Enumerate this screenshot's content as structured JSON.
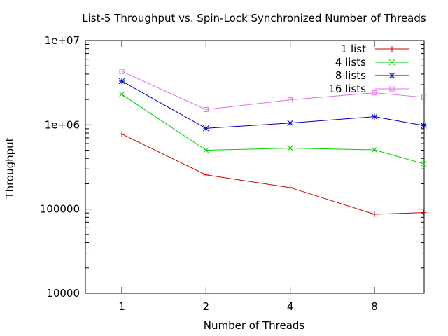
{
  "chart_data": {
    "type": "line",
    "title": "List-5 Throughput vs. Spin-Lock Synchronized Number of Threads",
    "xlabel": "Number of Threads",
    "ylabel": "Throughput",
    "x_scale": "log2",
    "y_scale": "log",
    "x_ticks": [
      "1",
      "2",
      "4",
      "8"
    ],
    "x_values": [
      1,
      2,
      4,
      8,
      12
    ],
    "ylim": [
      10000,
      10000000
    ],
    "y_ticks": [
      {
        "value": 10000,
        "label": "10000"
      },
      {
        "value": 100000,
        "label": "100000"
      },
      {
        "value": 1000000,
        "label": "1e+06"
      },
      {
        "value": 10000000,
        "label": "1e+07"
      }
    ],
    "grid": false,
    "legend_position": "top-right",
    "series": [
      {
        "name": "1 list",
        "color": "#d00000",
        "marker": "plus",
        "values": [
          780000,
          255000,
          180000,
          87000,
          91000
        ]
      },
      {
        "name": "4 lists",
        "color": "#00d000",
        "marker": "cross",
        "values": [
          2300000,
          500000,
          530000,
          505000,
          345000
        ]
      },
      {
        "name": "8 lists",
        "color": "#0000c8",
        "marker": "star",
        "values": [
          3300000,
          910000,
          1050000,
          1250000,
          980000
        ]
      },
      {
        "name": "16 lists",
        "color": "#e070e0",
        "marker": "square",
        "values": [
          4300000,
          1520000,
          1980000,
          2400000,
          2120000
        ]
      }
    ]
  }
}
